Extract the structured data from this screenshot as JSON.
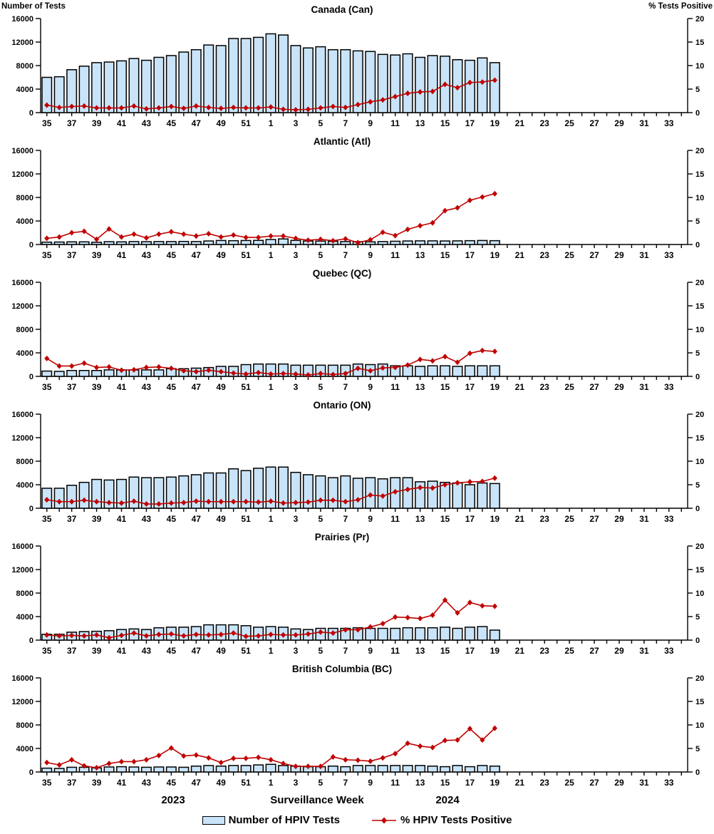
{
  "page": {
    "ylabel_left": "Number of Tests",
    "ylabel_right": "% Tests Positive"
  },
  "footer": {
    "year_left": "2023",
    "xlabel": "Surveillance Week",
    "year_right": "2024"
  },
  "legend": {
    "bars_label": "Number of HPIV Tests",
    "line_label": "% HPIV Tests Positive"
  },
  "colors": {
    "bar_fill": "#C9E4F9",
    "bar_stroke": "#000000",
    "line": "#C00000",
    "axis": "#000000"
  },
  "chart_data": {
    "type": "combo-bar-line",
    "x_axis": {
      "label": "Surveillance Week",
      "total_weeks": 52,
      "tick_labels": [
        "35",
        "37",
        "39",
        "41",
        "43",
        "45",
        "47",
        "49",
        "51",
        "1",
        "3",
        "5",
        "7",
        "9",
        "11",
        "13",
        "15",
        "17",
        "19",
        "21",
        "23",
        "25",
        "27",
        "29",
        "31",
        "33"
      ],
      "data_weeks": [
        35,
        36,
        37,
        38,
        39,
        40,
        41,
        42,
        43,
        44,
        45,
        46,
        47,
        48,
        49,
        50,
        51,
        52,
        1,
        2,
        3,
        4,
        5,
        6,
        7,
        8,
        9,
        10,
        11,
        12,
        13,
        14,
        15,
        16,
        17,
        18,
        19
      ]
    },
    "y_axis_left": {
      "label": "Number of Tests",
      "min": 0,
      "max": 16000,
      "ticks": [
        0,
        4000,
        8000,
        12000,
        16000
      ]
    },
    "y_axis_right": {
      "label": "% Tests Positive",
      "min": 0,
      "max": 20,
      "ticks": [
        0,
        5,
        10,
        15,
        20
      ]
    },
    "panels": [
      {
        "title": "Canada (Can)",
        "series": [
          {
            "name": "Number of HPIV Tests",
            "type": "bar",
            "axis": "left",
            "values": [
              6000,
              6100,
              7300,
              7900,
              8500,
              8600,
              8800,
              9200,
              8900,
              9400,
              9700,
              10300,
              10700,
              11500,
              11400,
              12600,
              12600,
              12800,
              13400,
              13200,
              11400,
              11000,
              11200,
              10700,
              10700,
              10500,
              10400,
              9900,
              9800,
              10000,
              9400,
              9700,
              9600,
              9000,
              8900,
              9300,
              8500
            ]
          },
          {
            "name": "% HPIV Tests Positive",
            "type": "line",
            "axis": "right",
            "values": [
              1.6,
              1.1,
              1.3,
              1.4,
              1.0,
              1.0,
              1.0,
              1.4,
              0.8,
              1.0,
              1.3,
              0.9,
              1.4,
              1.1,
              0.9,
              1.1,
              1.0,
              1.0,
              1.2,
              0.7,
              0.6,
              0.7,
              1.0,
              1.3,
              1.1,
              1.7,
              2.3,
              2.7,
              3.4,
              4.1,
              4.4,
              4.5,
              6.0,
              5.3,
              6.4,
              6.5,
              6.9
            ]
          }
        ]
      },
      {
        "title": "Atlantic (Atl)",
        "series": [
          {
            "name": "Number of HPIV Tests",
            "type": "bar",
            "axis": "left",
            "values": [
              400,
              420,
              450,
              450,
              380,
              480,
              450,
              500,
              480,
              500,
              500,
              520,
              500,
              600,
              680,
              650,
              680,
              700,
              850,
              950,
              700,
              600,
              580,
              550,
              500,
              480,
              450,
              500,
              550,
              600,
              620,
              620,
              600,
              620,
              650,
              680,
              650
            ]
          },
          {
            "name": "% HPIV Tests Positive",
            "type": "line",
            "axis": "right",
            "values": [
              1.3,
              1.6,
              2.5,
              2.8,
              1.1,
              3.3,
              1.6,
              2.2,
              1.4,
              2.2,
              2.7,
              2.2,
              1.8,
              2.3,
              1.6,
              2.0,
              1.5,
              1.5,
              1.8,
              1.8,
              1.3,
              0.9,
              1.1,
              0.8,
              1.2,
              0.4,
              1.0,
              2.6,
              1.9,
              3.2,
              4.0,
              4.6,
              7.2,
              7.8,
              9.4,
              10.1,
              10.8
            ]
          }
        ]
      },
      {
        "title": "Quebec (QC)",
        "series": [
          {
            "name": "Number of HPIV Tests",
            "type": "bar",
            "axis": "left",
            "values": [
              900,
              850,
              1000,
              1000,
              1000,
              1100,
              1100,
              1100,
              1100,
              1100,
              1300,
              1300,
              1400,
              1500,
              1700,
              1700,
              2000,
              2100,
              2100,
              2100,
              1900,
              1900,
              1900,
              1900,
              1900,
              2100,
              2000,
              2100,
              1800,
              1800,
              1700,
              1800,
              1800,
              1700,
              1800,
              1800,
              1800
            ]
          },
          {
            "name": "% HPIV Tests Positive",
            "type": "line",
            "axis": "right",
            "values": [
              3.8,
              2.2,
              2.2,
              2.8,
              1.9,
              2.0,
              1.3,
              1.4,
              1.9,
              2.0,
              1.7,
              1.2,
              1.0,
              1.3,
              1.0,
              0.7,
              0.5,
              0.8,
              0.5,
              0.6,
              0.5,
              0.3,
              0.6,
              0.4,
              0.6,
              1.7,
              1.2,
              1.8,
              1.9,
              2.4,
              3.6,
              3.3,
              4.2,
              3.0,
              4.9,
              5.5,
              5.3
            ]
          }
        ]
      },
      {
        "title": "Ontario (ON)",
        "series": [
          {
            "name": "Number of HPIV Tests",
            "type": "bar",
            "axis": "left",
            "values": [
              3400,
              3400,
              3900,
              4400,
              4900,
              4800,
              4900,
              5300,
              5200,
              5200,
              5300,
              5500,
              5700,
              6000,
              6000,
              6700,
              6400,
              6800,
              7000,
              7000,
              6100,
              5700,
              5500,
              5200,
              5500,
              5100,
              5200,
              5000,
              5200,
              5200,
              4500,
              4600,
              4400,
              4300,
              4000,
              4300,
              4200
            ]
          },
          {
            "name": "% HPIV Tests Positive",
            "type": "line",
            "axis": "right",
            "values": [
              1.8,
              1.4,
              1.4,
              1.7,
              1.4,
              1.2,
              1.1,
              1.5,
              0.9,
              0.9,
              1.1,
              1.2,
              1.5,
              1.4,
              1.4,
              1.4,
              1.4,
              1.3,
              1.5,
              1.1,
              1.2,
              1.3,
              1.7,
              1.7,
              1.4,
              1.8,
              2.8,
              2.6,
              3.5,
              4.0,
              4.4,
              4.3,
              5.0,
              5.4,
              5.6,
              5.7,
              6.4
            ]
          }
        ]
      },
      {
        "title": "Prairies (Pr)",
        "series": [
          {
            "name": "Number of HPIV Tests",
            "type": "bar",
            "axis": "left",
            "values": [
              1000,
              1000,
              1350,
              1450,
              1500,
              1600,
              1800,
              1900,
              1800,
              2100,
              2200,
              2200,
              2300,
              2600,
              2600,
              2600,
              2450,
              2200,
              2300,
              2200,
              1900,
              1800,
              2000,
              2000,
              2000,
              2100,
              2000,
              2000,
              2000,
              2100,
              2100,
              2100,
              2200,
              2000,
              2200,
              2300,
              1700
            ]
          },
          {
            "name": "% HPIV Tests Positive",
            "type": "line",
            "axis": "right",
            "values": [
              1.1,
              0.9,
              1.0,
              0.9,
              1.1,
              0.5,
              1.0,
              1.5,
              0.9,
              1.2,
              1.3,
              0.9,
              1.2,
              1.1,
              1.2,
              1.5,
              0.8,
              0.9,
              1.2,
              1.1,
              1.1,
              1.3,
              1.7,
              1.5,
              2.2,
              2.2,
              2.8,
              3.5,
              4.9,
              4.8,
              4.6,
              5.3,
              8.5,
              5.8,
              8.0,
              7.3,
              7.2
            ]
          }
        ]
      },
      {
        "title": "British Columbia (BC)",
        "series": [
          {
            "name": "Number of HPIV Tests",
            "type": "bar",
            "axis": "left",
            "values": [
              650,
              600,
              800,
              800,
              700,
              850,
              900,
              850,
              800,
              850,
              850,
              800,
              1000,
              1100,
              1000,
              1100,
              1100,
              1200,
              1300,
              1100,
              1000,
              900,
              900,
              1000,
              900,
              1100,
              1100,
              1100,
              1100,
              1100,
              1100,
              1000,
              900,
              1100,
              900,
              1100,
              1000
            ]
          },
          {
            "name": "% HPIV Tests Positive",
            "type": "line",
            "axis": "right",
            "values": [
              2.0,
              1.5,
              2.6,
              1.3,
              0.9,
              1.8,
              2.2,
              2.2,
              2.6,
              3.5,
              5.1,
              3.4,
              3.6,
              3.0,
              2.0,
              2.9,
              2.9,
              3.1,
              2.6,
              1.8,
              1.2,
              1.2,
              1.2,
              3.2,
              2.6,
              2.5,
              2.3,
              3.0,
              3.9,
              6.1,
              5.5,
              5.2,
              6.7,
              6.8,
              9.2,
              6.8,
              9.3
            ]
          }
        ]
      }
    ]
  }
}
